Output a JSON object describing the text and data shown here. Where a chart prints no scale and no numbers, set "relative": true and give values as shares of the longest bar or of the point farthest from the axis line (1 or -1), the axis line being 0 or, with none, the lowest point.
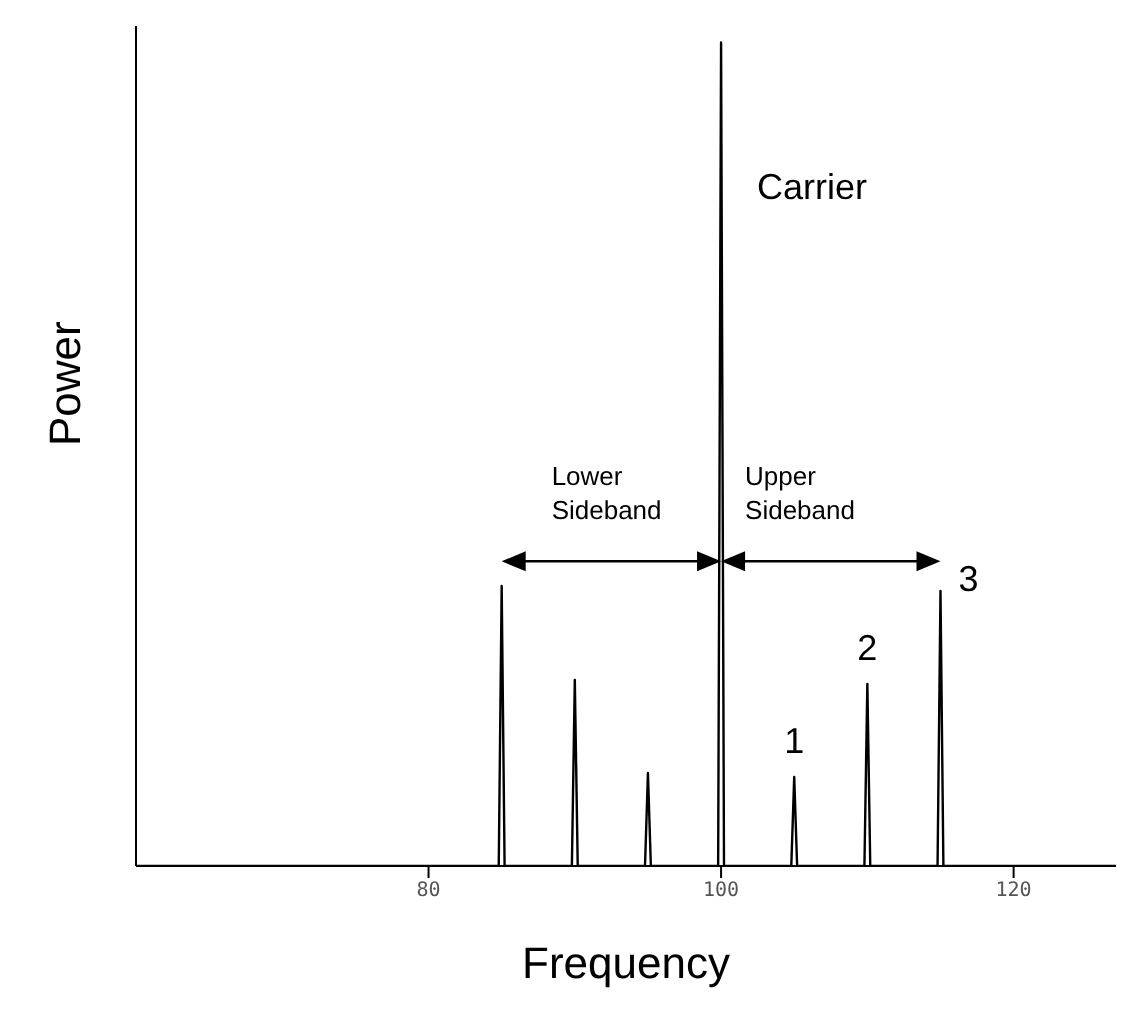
{
  "chart_data": {
    "type": "line",
    "relative": true,
    "xlabel": "Frequency",
    "ylabel": "Power",
    "xlim": [
      60,
      127
    ],
    "xticks": [
      80,
      100,
      120
    ],
    "x": [
      60,
      84.8,
      85,
      85.2,
      89.8,
      90,
      90.2,
      94.8,
      95,
      95.2,
      99.8,
      100,
      100.2,
      104.8,
      105,
      105.2,
      109.8,
      110,
      110.2,
      114.8,
      115,
      115.2,
      127
    ],
    "series": [
      {
        "color": "#000000",
        "values": [
          0,
          0,
          0.34,
          0,
          0,
          0.226,
          0,
          0,
          0.113,
          0,
          0,
          1,
          0,
          0,
          0.108,
          0,
          0,
          0.221,
          0,
          0,
          0.334,
          0,
          0
        ]
      }
    ],
    "annotations": [
      "Carrier",
      "Lower Sideband",
      "Upper Sideband",
      "1",
      "2",
      "3"
    ],
    "grid": false,
    "marker": "none",
    "line_style": "solid"
  }
}
